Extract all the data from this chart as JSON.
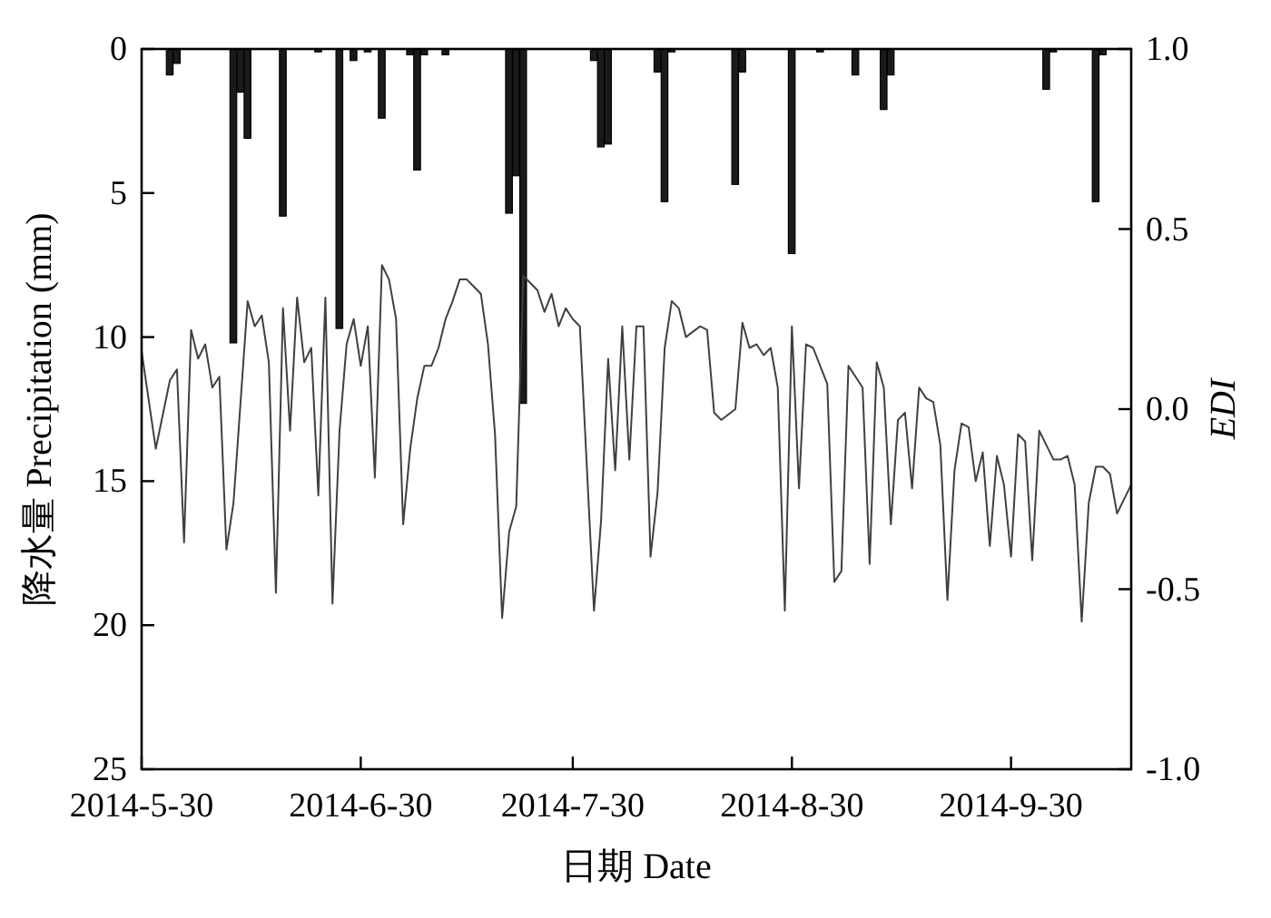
{
  "chart_data": {
    "type": "bar",
    "xlabel": "日期 Date",
    "ylabel": "降水量 Precipitation (mm)",
    "y2label": "EDI",
    "xlim": [
      "2014-05-30",
      "2014-10-17"
    ],
    "xticks": [
      {
        "value": "2014-05-30",
        "label": "2014-5-30"
      },
      {
        "value": "2014-06-30",
        "label": "2014-6-30"
      },
      {
        "value": "2014-07-30",
        "label": "2014-7-30"
      },
      {
        "value": "2014-08-30",
        "label": "2014-8-30"
      },
      {
        "value": "2014-09-30",
        "label": "2014-9-30"
      }
    ],
    "ylim": [
      25,
      0
    ],
    "yticks": [
      0,
      5,
      10,
      15,
      20,
      25
    ],
    "y2lim": [
      -1,
      1
    ],
    "y2ticks": [
      {
        "value": 1,
        "label": "1.0"
      },
      {
        "value": 0.5,
        "label": "0.5"
      },
      {
        "value": 0,
        "label": "0.0"
      },
      {
        "value": -0.5,
        "label": "-0.5"
      },
      {
        "value": -1,
        "label": "-1.0"
      }
    ],
    "grid": false,
    "series": [
      {
        "color": "#1a1a1a",
        "x": [
          "2014-06-03",
          "2014-06-04",
          "2014-06-12",
          "2014-06-13",
          "2014-06-14",
          "2014-06-19",
          "2014-06-24",
          "2014-06-27",
          "2014-06-29",
          "2014-07-01",
          "2014-07-03",
          "2014-07-07",
          "2014-07-08",
          "2014-07-09",
          "2014-07-12",
          "2014-07-21",
          "2014-07-22",
          "2014-07-23",
          "2014-08-02",
          "2014-08-03",
          "2014-08-04",
          "2014-08-11",
          "2014-08-12",
          "2014-08-13",
          "2014-08-22",
          "2014-08-23",
          "2014-08-30",
          "2014-09-03",
          "2014-09-08",
          "2014-09-12",
          "2014-09-13",
          "2014-10-05",
          "2014-10-06",
          "2014-10-12",
          "2014-10-13"
        ],
        "values": [
          0.9,
          0.5,
          10.2,
          1.5,
          3.1,
          5.8,
          0.1,
          9.7,
          0.4,
          0.1,
          2.4,
          0.2,
          4.2,
          0.2,
          0.2,
          5.7,
          4.4,
          12.3,
          0.4,
          3.4,
          3.3,
          0.8,
          5.3,
          0.1,
          4.7,
          0.8,
          7.1,
          0.1,
          0.9,
          2.1,
          0.9,
          1.4,
          0.1,
          5.3,
          0.2
        ]
      },
      {
        "type": "line",
        "axis": "y2",
        "color": "#404040",
        "x": [
          "2014-05-30",
          "2014-06-01",
          "2014-06-03",
          "2014-06-04",
          "2014-06-05",
          "2014-06-06",
          "2014-06-07",
          "2014-06-08",
          "2014-06-09",
          "2014-06-10",
          "2014-06-11",
          "2014-06-12",
          "2014-06-14",
          "2014-06-15",
          "2014-06-16",
          "2014-06-17",
          "2014-06-18",
          "2014-06-19",
          "2014-06-20",
          "2014-06-21",
          "2014-06-22",
          "2014-06-23",
          "2014-06-24",
          "2014-06-25",
          "2014-06-26",
          "2014-06-27",
          "2014-06-28",
          "2014-06-29",
          "2014-06-30",
          "2014-07-01",
          "2014-07-02",
          "2014-07-03",
          "2014-07-04",
          "2014-07-05",
          "2014-07-06",
          "2014-07-07",
          "2014-07-08",
          "2014-07-09",
          "2014-07-10",
          "2014-07-11",
          "2014-07-12",
          "2014-07-13",
          "2014-07-14",
          "2014-07-15",
          "2014-07-16",
          "2014-07-17",
          "2014-07-18",
          "2014-07-19",
          "2014-07-20",
          "2014-07-21",
          "2014-07-22",
          "2014-07-23",
          "2014-07-24",
          "2014-07-25",
          "2014-07-26",
          "2014-07-27",
          "2014-07-28",
          "2014-07-29",
          "2014-07-30",
          "2014-07-31",
          "2014-08-02",
          "2014-08-03",
          "2014-08-04",
          "2014-08-05",
          "2014-08-06",
          "2014-08-07",
          "2014-08-08",
          "2014-08-09",
          "2014-08-10",
          "2014-08-11",
          "2014-08-12",
          "2014-08-13",
          "2014-08-14",
          "2014-08-15",
          "2014-08-17",
          "2014-08-18",
          "2014-08-19",
          "2014-08-20",
          "2014-08-22",
          "2014-08-23",
          "2014-08-24",
          "2014-08-25",
          "2014-08-26",
          "2014-08-27",
          "2014-08-28",
          "2014-08-29",
          "2014-08-30",
          "2014-08-31",
          "2014-09-01",
          "2014-09-02",
          "2014-09-03",
          "2014-09-04",
          "2014-09-05",
          "2014-09-06",
          "2014-09-07",
          "2014-09-08",
          "2014-09-09",
          "2014-09-10",
          "2014-09-11",
          "2014-09-12",
          "2014-09-13",
          "2014-09-14",
          "2014-09-15",
          "2014-09-16",
          "2014-09-17",
          "2014-09-18",
          "2014-09-19",
          "2014-09-20",
          "2014-09-21",
          "2014-09-22",
          "2014-09-23",
          "2014-09-24",
          "2014-09-25",
          "2014-09-26",
          "2014-09-27",
          "2014-09-28",
          "2014-09-29",
          "2014-09-30",
          "2014-10-01",
          "2014-10-02",
          "2014-10-03",
          "2014-10-04",
          "2014-10-06",
          "2014-10-07",
          "2014-10-08",
          "2014-10-09",
          "2014-10-10",
          "2014-10-11",
          "2014-10-12",
          "2014-10-13",
          "2014-10-14",
          "2014-10-15",
          "2014-10-17"
        ],
        "values": [
          0.16,
          -0.11,
          0.08,
          0.11,
          -0.37,
          0.22,
          0.14,
          0.18,
          0.06,
          0.09,
          -0.39,
          -0.26,
          0.3,
          0.23,
          0.26,
          0.13,
          -0.51,
          0.28,
          -0.06,
          0.31,
          0.13,
          0.17,
          -0.24,
          0.31,
          -0.54,
          -0.06,
          0.18,
          0.25,
          0.12,
          0.23,
          -0.19,
          0.4,
          0.36,
          0.25,
          -0.32,
          -0.11,
          0.03,
          0.12,
          0.12,
          0.17,
          0.25,
          0.3,
          0.36,
          0.36,
          0.34,
          0.32,
          0.18,
          -0.07,
          -0.58,
          -0.34,
          -0.27,
          0.37,
          0.35,
          0.33,
          0.27,
          0.32,
          0.23,
          0.28,
          0.25,
          0.23,
          -0.56,
          -0.31,
          0.14,
          -0.17,
          0.23,
          -0.14,
          0.23,
          0.23,
          -0.41,
          -0.23,
          0.17,
          0.3,
          0.28,
          0.2,
          0.23,
          0.22,
          -0.01,
          -0.03,
          0.0,
          0.24,
          0.17,
          0.18,
          0.15,
          0.17,
          0.06,
          -0.56,
          0.23,
          -0.22,
          0.18,
          0.17,
          0.12,
          0.07,
          -0.48,
          -0.45,
          0.12,
          0.09,
          0.06,
          -0.43,
          0.13,
          0.06,
          -0.32,
          -0.03,
          -0.01,
          -0.22,
          0.06,
          0.03,
          0.02,
          -0.1,
          -0.53,
          -0.17,
          -0.04,
          -0.05,
          -0.2,
          -0.12,
          -0.38,
          -0.13,
          -0.21,
          -0.41,
          -0.07,
          -0.09,
          -0.42,
          -0.06,
          -0.14,
          -0.14,
          -0.13,
          -0.21,
          -0.59,
          -0.26,
          -0.16,
          -0.16,
          -0.18,
          -0.29,
          -0.21
        ]
      }
    ]
  }
}
